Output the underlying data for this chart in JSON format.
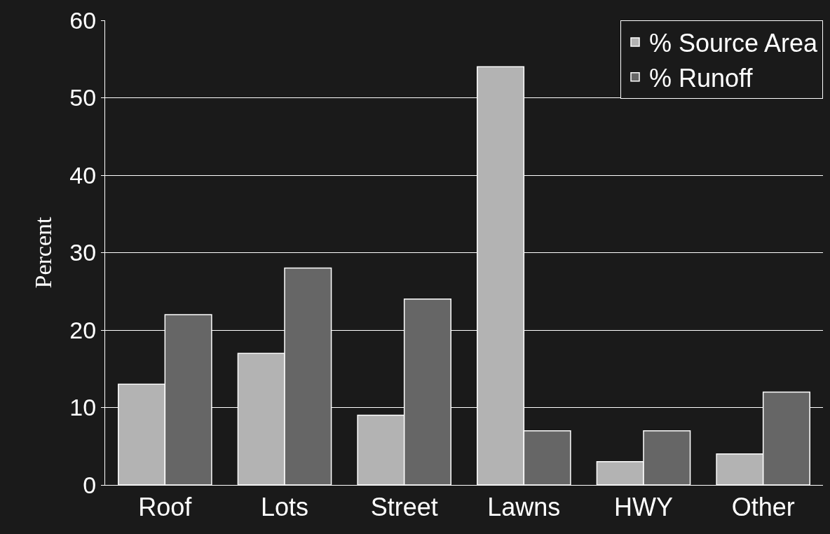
{
  "chart_data": {
    "type": "bar",
    "ylabel": "Percent",
    "categories": [
      "Roof",
      "Lots",
      "Street",
      "Lawns",
      "HWY",
      "Other"
    ],
    "series": [
      {
        "name": "% Source Area",
        "color": "#b3b3b3",
        "values": [
          13,
          17,
          9,
          54,
          3,
          4
        ]
      },
      {
        "name": "% Runoff",
        "color": "#666666",
        "values": [
          22,
          28,
          24,
          7,
          7,
          12
        ]
      }
    ],
    "ylim": [
      0,
      60
    ],
    "yticks": [
      0,
      10,
      20,
      30,
      40,
      50,
      60
    ],
    "grid": "y",
    "legend": "top right"
  }
}
